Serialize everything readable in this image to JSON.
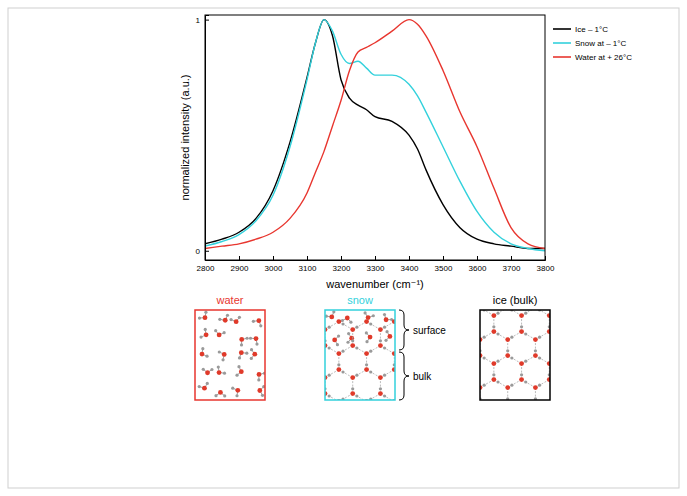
{
  "chart_data": {
    "type": "line",
    "x_label": "wavenumber (cm⁻¹)",
    "y_label": "normalized intensity (a.u.)",
    "x": [
      2800,
      2850,
      2900,
      2950,
      3000,
      3050,
      3100,
      3125,
      3150,
      3175,
      3200,
      3225,
      3250,
      3275,
      3300,
      3350,
      3400,
      3425,
      3450,
      3500,
      3550,
      3600,
      3650,
      3700,
      3750,
      3800
    ],
    "series": [
      {
        "name": "Ice – 1°C",
        "color": "#000000",
        "values": [
          0.03,
          0.05,
          0.08,
          0.14,
          0.26,
          0.47,
          0.75,
          0.9,
          1.0,
          0.93,
          0.74,
          0.66,
          0.63,
          0.61,
          0.58,
          0.56,
          0.5,
          0.44,
          0.35,
          0.2,
          0.1,
          0.05,
          0.03,
          0.02,
          0.01,
          0.01
        ]
      },
      {
        "name": "Snow at – 1°C",
        "color": "#33d1dc",
        "values": [
          0.02,
          0.04,
          0.07,
          0.13,
          0.24,
          0.45,
          0.74,
          0.9,
          1.0,
          0.95,
          0.85,
          0.81,
          0.82,
          0.79,
          0.76,
          0.76,
          0.72,
          0.67,
          0.6,
          0.45,
          0.3,
          0.17,
          0.08,
          0.03,
          0.01,
          0.0
        ]
      },
      {
        "name": "Water at + 26°C",
        "color": "#e8362f",
        "values": [
          0.01,
          0.02,
          0.03,
          0.05,
          0.08,
          0.14,
          0.25,
          0.34,
          0.43,
          0.54,
          0.65,
          0.78,
          0.86,
          0.88,
          0.9,
          0.95,
          1.0,
          0.98,
          0.93,
          0.78,
          0.6,
          0.45,
          0.27,
          0.1,
          0.03,
          0.01
        ]
      }
    ],
    "xlim": [
      2800,
      3800
    ],
    "xticks": [
      2800,
      2900,
      3000,
      3100,
      3200,
      3300,
      3400,
      3500,
      3600,
      3700,
      3800
    ],
    "ylim": [
      -0.04,
      1.02
    ],
    "yticks": [
      0,
      1
    ],
    "grid": false,
    "legend": "right"
  },
  "diagram": {
    "panels": [
      "water",
      "snow",
      "ice (bulk)"
    ],
    "braces": [
      "surface",
      "bulk"
    ]
  }
}
